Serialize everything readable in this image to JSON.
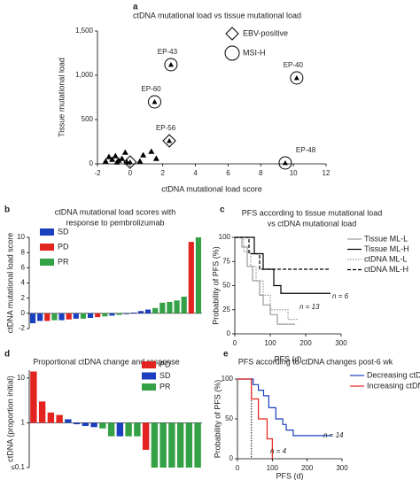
{
  "chart_data": [
    {
      "type": "scatter",
      "panel": "a",
      "title": [
        "ctDNA mutational load vs tissue mutational load"
      ],
      "x_label": "ctDNA mutational load score",
      "y_label": "Tissue mutational load",
      "xlim": [
        -2,
        12
      ],
      "xticks": [
        -2,
        0,
        2,
        4,
        6,
        8,
        10,
        12
      ],
      "ylim": [
        0,
        1500
      ],
      "yticks": [
        0,
        500,
        {
          "value": 1000,
          "label": "1,000"
        },
        {
          "value": 1500,
          "label": "1,500"
        }
      ],
      "x": [
        -1.3,
        -1.1,
        -0.9,
        -0.7,
        -0.5,
        -0.3,
        -0.8,
        -0.2,
        -1.5,
        0,
        0.6,
        0.8,
        1.3,
        1.6,
        2.5,
        10.2,
        1.5,
        2.4,
        9.5
      ],
      "y": [
        80,
        50,
        90,
        40,
        60,
        130,
        20,
        20,
        30,
        20,
        30,
        100,
        140,
        60,
        1120,
        970,
        700,
        260,
        10
      ],
      "markers": [
        "triangle",
        "triangle",
        "triangle",
        "triangle",
        "triangle",
        "triangle",
        "triangle",
        "triangle",
        "triangle",
        "ebv",
        "triangle",
        "triangle",
        "triangle",
        "triangle",
        "msi",
        "msi",
        "msi",
        "ebv",
        "msi"
      ],
      "point_labels": [
        null,
        null,
        null,
        null,
        null,
        null,
        null,
        null,
        null,
        null,
        null,
        null,
        null,
        null,
        "EP-43",
        "EP-40",
        "EP-60",
        "EP-56",
        "EP-48"
      ],
      "legend": [
        {
          "label": "EBV-positive",
          "marker": "ebv"
        },
        {
          "label": "MSI-H",
          "marker": "msi"
        }
      ]
    },
    {
      "type": "bar",
      "panel": "b",
      "title": [
        "ctDNA mutational load scores with",
        "response to pembrolizumab"
      ],
      "y_label": "ctDNA mutational load score",
      "ylim": [
        -2,
        10
      ],
      "yticks": [
        -2,
        0,
        2,
        4,
        6,
        8,
        10
      ],
      "categories": [
        null,
        null,
        null,
        null,
        null,
        null,
        null,
        null,
        null,
        null,
        null,
        null,
        null,
        null,
        null,
        null,
        null,
        null,
        null,
        null,
        null,
        null,
        null,
        null
      ],
      "series": [
        {
          "name": "SD",
          "color": "#1a3fbf",
          "values": [
            -1.3,
            -1.0,
            null,
            null,
            -0.9,
            null,
            -0.7,
            null,
            -0.6,
            null,
            null,
            -0.3,
            null,
            -0.1,
            0.1,
            0.3,
            0.5,
            null,
            null,
            null,
            null,
            null,
            null,
            null
          ]
        },
        {
          "name": "PD",
          "color": "#e3231f",
          "values": [
            null,
            null,
            -1.0,
            null,
            null,
            -0.8,
            null,
            null,
            null,
            -0.5,
            null,
            null,
            null,
            null,
            null,
            null,
            null,
            null,
            null,
            null,
            null,
            null,
            9.4,
            null
          ]
        },
        {
          "name": "PR",
          "color": "#35a146",
          "values": [
            null,
            null,
            null,
            -0.9,
            null,
            null,
            null,
            -0.7,
            null,
            null,
            -0.4,
            null,
            -0.2,
            null,
            null,
            null,
            null,
            0.7,
            1.4,
            1.5,
            1.7,
            2.2,
            null,
            10
          ]
        }
      ]
    },
    {
      "type": "step",
      "panel": "c",
      "title": [
        "PFS according to tissue mutational load",
        "vs ctDNA mutational load"
      ],
      "x_label": "PFS (d)",
      "y_label": "Probability of PFS (%)",
      "xlim": [
        0,
        300
      ],
      "xticks": [
        0,
        100,
        200,
        300
      ],
      "ylim": [
        0,
        100
      ],
      "yticks": [
        0,
        25,
        50,
        75,
        100
      ],
      "series": [
        {
          "name": "Tissue ML-L",
          "color": "#999999",
          "style": "solid",
          "x": [
            0,
            20,
            35,
            50,
            70,
            80,
            100,
            120,
            170
          ],
          "y": [
            100,
            90,
            70,
            55,
            40,
            30,
            20,
            10,
            10
          ]
        },
        {
          "name": "Tissue ML-H",
          "color": "#000000",
          "style": "solid",
          "x": [
            0,
            55,
            80,
            110,
            130,
            270
          ],
          "y": [
            100,
            83,
            67,
            50,
            42,
            42
          ]
        },
        {
          "name": "ctDNA ML-L",
          "color": "#999999",
          "style": "dotted",
          "x": [
            0,
            25,
            45,
            60,
            80,
            100,
            150,
            180
          ],
          "y": [
            100,
            85,
            70,
            55,
            40,
            25,
            15,
            15
          ]
        },
        {
          "name": "ctDNA ML-H",
          "color": "#000000",
          "style": "dashed",
          "x": [
            0,
            40,
            70,
            270
          ],
          "y": [
            100,
            83,
            67,
            67
          ]
        }
      ],
      "annotations": [
        "n = 6",
        "n = 13"
      ]
    },
    {
      "type": "bar",
      "panel": "d",
      "title": [
        "Proportional ctDNA change and response"
      ],
      "y_label": "ctDNA (proportion initial)",
      "log_scale": true,
      "ylim": [
        0.1,
        15
      ],
      "yticks": [
        {
          "value": 0.1,
          "label": "≤0.1"
        },
        1,
        10
      ],
      "categories": [
        null,
        null,
        null,
        null,
        null,
        null,
        null,
        null,
        null,
        null,
        null,
        null,
        null,
        null,
        null,
        null,
        null,
        null,
        null,
        null
      ],
      "series": [
        {
          "name": "PD",
          "color": "#e3231f",
          "values": [
            14,
            3,
            1.7,
            1.5,
            null,
            null,
            null,
            null,
            null,
            null,
            null,
            null,
            null,
            0.25,
            null,
            null,
            null,
            null,
            null,
            null
          ]
        },
        {
          "name": "SD",
          "color": "#1a3fbf",
          "values": [
            null,
            null,
            null,
            null,
            1.2,
            0.93,
            0.85,
            0.8,
            null,
            null,
            0.5,
            null,
            null,
            null,
            null,
            null,
            null,
            null,
            null,
            null
          ]
        },
        {
          "name": "PR",
          "color": "#35a146",
          "values": [
            null,
            null,
            null,
            null,
            null,
            null,
            null,
            null,
            0.75,
            0.5,
            null,
            0.5,
            0.5,
            null,
            0.1,
            0.1,
            0.1,
            0.1,
            0.1,
            0.1
          ]
        }
      ]
    },
    {
      "type": "step",
      "panel": "e",
      "title": [
        "PFS according to ctDNA changes post-6 wk"
      ],
      "x_label": "PFS (d)",
      "y_label": "Probability of PFS (%)",
      "xlim": [
        0,
        300
      ],
      "xticks": [
        0,
        100,
        200,
        300
      ],
      "ylim": [
        0,
        100
      ],
      "yticks": [
        0,
        50,
        100
      ],
      "vline": 40,
      "series": [
        {
          "name": "Decreasing ctDNA",
          "color": "#1a3fbf",
          "style": "solid",
          "x": [
            0,
            45,
            60,
            75,
            90,
            110,
            130,
            140,
            160,
            270
          ],
          "y": [
            100,
            93,
            86,
            79,
            64,
            50,
            43,
            36,
            29,
            29
          ]
        },
        {
          "name": "Increasing ctDNA",
          "color": "#e3231f",
          "style": "solid",
          "x": [
            0,
            40,
            60,
            85,
            100
          ],
          "y": [
            100,
            75,
            50,
            25,
            0
          ]
        }
      ],
      "annotations": [
        "n = 14",
        "n = 4"
      ]
    }
  ]
}
